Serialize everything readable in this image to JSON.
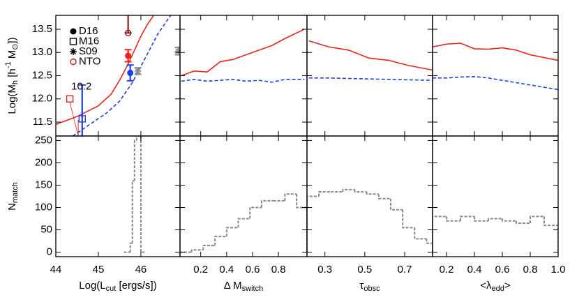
{
  "chart_data": [
    {
      "type": "line",
      "xlim": [
        44,
        46.92
      ],
      "ylim": [
        11.2,
        13.8
      ],
      "xticks": [
        44,
        45,
        46
      ],
      "yticks": [
        11.5,
        {
          "value": 12,
          "label": "12.0"
        },
        12.5,
        {
          "value": 13,
          "label": "13.0"
        },
        13.5
      ],
      "ylabel": [
        {
          "text": "Log(M"
        },
        {
          "text": "h",
          "shift": "sub"
        },
        {
          "text": " [h"
        },
        {
          "text": "-1",
          "shift": "sup"
        },
        {
          "text": " M"
        },
        {
          "text": "⊙",
          "shift": "sub"
        },
        {
          "text": "])"
        }
      ],
      "lines": [
        {
          "color": "#e8231f",
          "linestyle": "solid",
          "x": [
            44,
            44.5,
            45,
            45.3,
            45.5,
            45.7,
            45.85,
            46.0,
            46.15,
            46.3
          ],
          "values": [
            11.45,
            11.62,
            11.85,
            12.1,
            12.4,
            12.75,
            13.05,
            13.35,
            13.6,
            13.8
          ]
        },
        {
          "color": "#1f3fe0",
          "linestyle": "dashed",
          "x": [
            44.4,
            44.8,
            45.2,
            45.5,
            45.8,
            46.0,
            46.2,
            46.4,
            46.55,
            46.7
          ],
          "values": [
            11.2,
            11.45,
            11.7,
            11.95,
            12.35,
            12.7,
            13.05,
            13.4,
            13.6,
            13.8
          ]
        }
      ],
      "legend": [
        {
          "name": "D16",
          "marker": "circle-filled"
        },
        {
          "name": "M16",
          "marker": "square-open"
        },
        {
          "name": "S09",
          "marker": "star"
        },
        {
          "name": "NTO",
          "marker": "circle-open",
          "color": "#b22222"
        }
      ],
      "points": [
        {
          "marker": "circle-filled",
          "color": "#e8231f",
          "x": 45.7,
          "y": 12.93,
          "yerr": [
            0.13,
            0.13
          ]
        },
        {
          "marker": "circle-filled",
          "color": "#1f3fe0",
          "x": 45.75,
          "y": 12.56,
          "yerr": [
            0.17,
            0.17
          ]
        },
        {
          "marker": "circle-open",
          "color": "#8b1a1a",
          "x": 45.7,
          "y": 13.42,
          "yerr": [
            0,
            0.5
          ]
        },
        {
          "marker": "square-open",
          "color": "#e8231f",
          "x": 44.33,
          "y": 12.0,
          "yerr": [
            0,
            0
          ]
        },
        {
          "marker": "square-open",
          "color": "#1f3fe0",
          "x": 44.62,
          "y": 11.57,
          "yerr": [
            0.4,
            0.73
          ]
        },
        {
          "marker": "star",
          "color": "#888888",
          "x": 45.93,
          "y": 12.6,
          "yerr": [
            0.07,
            0.07
          ]
        },
        {
          "marker": "star",
          "color": "#888888",
          "x": 46.88,
          "y": 13.03,
          "yerr": [
            0.08,
            0.08
          ]
        }
      ],
      "annotation": "10.2"
    },
    {
      "type": "line",
      "xlim": [
        0.04,
        1.02
      ],
      "ylim": [
        11.2,
        13.8
      ],
      "xticks": [
        0.2,
        0.4,
        0.6,
        0.8
      ],
      "yticks": [
        11.5,
        12,
        12.5,
        13,
        13.5
      ],
      "lines": [
        {
          "color": "#e8231f",
          "linestyle": "solid",
          "x": [
            0.05,
            0.15,
            0.25,
            0.35,
            0.45,
            0.55,
            0.65,
            0.75,
            0.85,
            1.0
          ],
          "values": [
            12.5,
            12.6,
            12.58,
            12.8,
            12.85,
            12.95,
            13.05,
            13.15,
            13.3,
            13.5
          ]
        },
        {
          "color": "#1f3fe0",
          "linestyle": "dashed",
          "x": [
            0.05,
            0.15,
            0.25,
            0.35,
            0.45,
            0.55,
            0.65,
            0.75,
            0.85,
            1.0
          ],
          "values": [
            12.38,
            12.42,
            12.38,
            12.4,
            12.42,
            12.38,
            12.4,
            12.36,
            12.42,
            12.42
          ]
        }
      ]
    },
    {
      "type": "line",
      "xlim": [
        0.21,
        0.84
      ],
      "ylim": [
        11.2,
        13.8
      ],
      "xticks": [
        0.3,
        0.5,
        0.7
      ],
      "yticks": [
        11.5,
        12,
        12.5,
        13,
        13.5
      ],
      "lines": [
        {
          "color": "#e8231f",
          "linestyle": "solid",
          "x": [
            0.22,
            0.32,
            0.42,
            0.52,
            0.62,
            0.72,
            0.84
          ],
          "values": [
            13.25,
            13.12,
            13.05,
            12.88,
            12.83,
            12.72,
            12.62
          ]
        },
        {
          "color": "#1f3fe0",
          "linestyle": "dashed",
          "x": [
            0.22,
            0.32,
            0.42,
            0.52,
            0.62,
            0.72,
            0.84
          ],
          "values": [
            12.45,
            12.45,
            12.44,
            12.43,
            12.42,
            12.41,
            12.4
          ]
        }
      ]
    },
    {
      "type": "line",
      "xlim": [
        0.1,
        1.0
      ],
      "ylim": [
        11.2,
        13.8
      ],
      "xticks": [
        0.2,
        0.4,
        0.6,
        0.8,
        1
      ],
      "yticks": [
        11.5,
        12,
        12.5,
        13,
        13.5
      ],
      "lines": [
        {
          "color": "#e8231f",
          "linestyle": "solid",
          "x": [
            0.1,
            0.2,
            0.3,
            0.4,
            0.5,
            0.6,
            0.7,
            0.8,
            1.0
          ],
          "values": [
            13.12,
            13.18,
            13.2,
            13.08,
            13.07,
            13.1,
            13.05,
            12.95,
            12.83
          ]
        },
        {
          "color": "#1f3fe0",
          "linestyle": "dashed",
          "x": [
            0.1,
            0.2,
            0.3,
            0.4,
            0.5,
            0.6,
            0.7,
            0.8,
            1.0
          ],
          "values": [
            12.45,
            12.45,
            12.47,
            12.48,
            12.45,
            12.4,
            12.35,
            12.3,
            12.2
          ]
        }
      ]
    },
    {
      "type": "histogram",
      "xlim": [
        44,
        46.92
      ],
      "ylim": [
        -10,
        260
      ],
      "color": "#888888",
      "xticks": [
        44,
        45,
        46
      ],
      "yticks": [
        0,
        50,
        100,
        150,
        200,
        250
      ],
      "xlabel": [
        {
          "text": "Log(L"
        },
        {
          "text": "cut",
          "shift": "sub"
        },
        {
          "text": " [ergs/s])"
        }
      ],
      "ylabel": [
        {
          "text": "N"
        },
        {
          "text": "match",
          "shift": "sub"
        }
      ],
      "bins": [
        45.6,
        45.75,
        45.8,
        45.85,
        45.9,
        46.0,
        46.1
      ],
      "values": [
        0,
        20,
        160,
        250,
        260,
        0
      ]
    },
    {
      "type": "histogram",
      "xlim": [
        0.04,
        1.02
      ],
      "ylim": [
        -10,
        260
      ],
      "color": "#888888",
      "xticks": [
        0.2,
        0.4,
        0.6,
        0.8
      ],
      "yticks": [
        0,
        50,
        100,
        150,
        200,
        250
      ],
      "xlabel": [
        {
          "text": "Δ M"
        },
        {
          "text": "switch",
          "shift": "sub"
        }
      ],
      "bins": [
        0.04,
        0.13,
        0.22,
        0.31,
        0.4,
        0.49,
        0.58,
        0.67,
        0.76,
        0.85,
        0.94,
        1.02
      ],
      "values": [
        0,
        5,
        15,
        35,
        55,
        75,
        100,
        115,
        115,
        130,
        100
      ]
    },
    {
      "type": "histogram",
      "xlim": [
        0.21,
        0.84
      ],
      "ylim": [
        -10,
        260
      ],
      "color": "#888888",
      "xticks": [
        0.3,
        0.5,
        0.7
      ],
      "yticks": [
        0,
        50,
        100,
        150,
        200,
        250
      ],
      "xlabel": [
        {
          "text": "τ"
        },
        {
          "text": "obsc",
          "shift": "sub"
        }
      ],
      "bins": [
        0.21,
        0.27,
        0.33,
        0.39,
        0.45,
        0.51,
        0.57,
        0.63,
        0.69,
        0.75,
        0.81,
        0.84
      ],
      "values": [
        125,
        135,
        135,
        140,
        135,
        130,
        120,
        95,
        55,
        30,
        20
      ]
    },
    {
      "type": "histogram",
      "xlim": [
        0.1,
        1.0
      ],
      "ylim": [
        -10,
        260
      ],
      "color": "#888888",
      "xticks": [
        0.2,
        0.4,
        0.6,
        0.8,
        {
          "value": 1,
          "label": "1.0"
        }
      ],
      "yticks": [
        0,
        50,
        100,
        150,
        200,
        250
      ],
      "xlabel": [
        {
          "text": "<λ"
        },
        {
          "text": "edd",
          "shift": "sub"
        },
        {
          "text": ">"
        }
      ],
      "bins": [
        0.1,
        0.2,
        0.3,
        0.4,
        0.5,
        0.6,
        0.7,
        0.8,
        0.9,
        1.0
      ],
      "values": [
        80,
        70,
        80,
        70,
        75,
        70,
        65,
        80,
        60
      ]
    }
  ]
}
